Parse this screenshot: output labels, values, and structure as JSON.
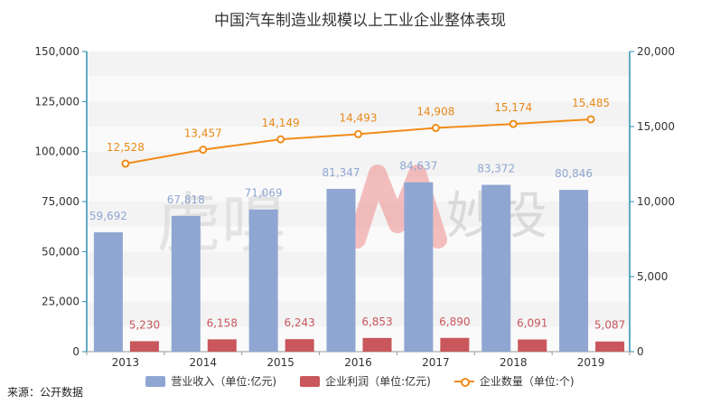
{
  "title": "中国汽车制造业规模以上工业企业整体表现",
  "source": "来源：公开数据",
  "watermark": {
    "left": "虎嗅",
    "right": "妙投"
  },
  "colors": {
    "revenue": "#8fa6d2",
    "profit": "#c9575c",
    "count": "#f08c1a",
    "revenue_label": "#8fa6d2",
    "profit_label": "#c9575c",
    "count_label": "#e8891a"
  },
  "chart_data": {
    "type": "bar",
    "categories": [
      "2013",
      "2014",
      "2015",
      "2016",
      "2017",
      "2018",
      "2019"
    ],
    "series": [
      {
        "name": "营业收入（单位:亿元)",
        "type": "bar",
        "axis": "left",
        "values": [
          59692,
          67818,
          71069,
          81347,
          84637,
          83372,
          80846
        ],
        "labels": [
          "59,692",
          "67,818",
          "71,069",
          "81,347",
          "84,637",
          "83,372",
          "80,846"
        ]
      },
      {
        "name": "企业利润（单位:亿元)",
        "type": "bar",
        "axis": "left",
        "values": [
          5230,
          6158,
          6243,
          6853,
          6890,
          6091,
          5087
        ],
        "labels": [
          "5,230",
          "6,158",
          "6,243",
          "6,853",
          "6,890",
          "6,091",
          "5,087"
        ]
      },
      {
        "name": "企业数量（单位:个)",
        "type": "line",
        "axis": "right",
        "values": [
          12528,
          13457,
          14149,
          14493,
          14908,
          15174,
          15485
        ],
        "labels": [
          "12,528",
          "13,457",
          "14,149",
          "14,493",
          "14,908",
          "15,174",
          "15,485"
        ]
      }
    ],
    "y_left": {
      "ylim": [
        0,
        150000
      ],
      "ticks": [
        "0",
        "25,000",
        "50,000",
        "75,000",
        "100,000",
        "125,000",
        "150,000"
      ]
    },
    "y_right": {
      "ylim": [
        0,
        20000
      ],
      "ticks": [
        "0",
        "5,000",
        "10,000",
        "15,000",
        "20,000"
      ]
    },
    "legend_position": "bottom",
    "grid": true
  }
}
